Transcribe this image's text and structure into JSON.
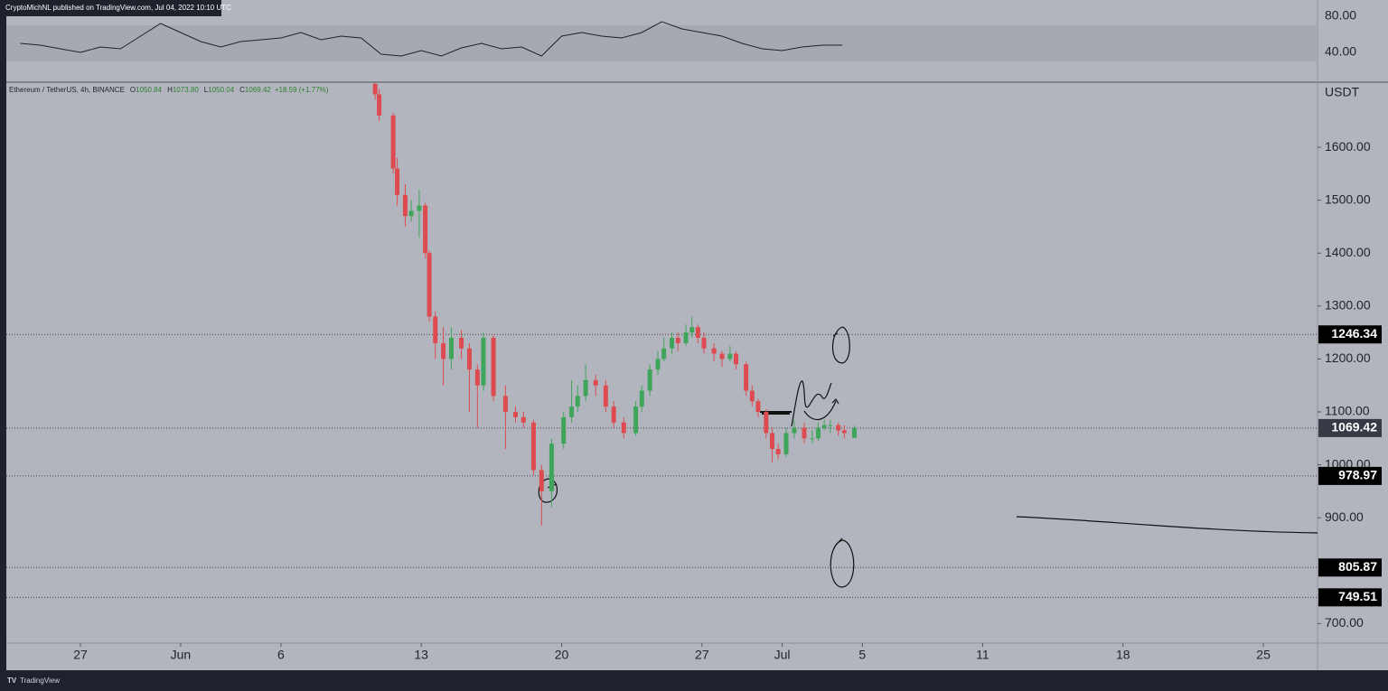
{
  "header": {
    "publisher": "CryptoMichNL published on TradingView.com, Jul 04, 2022 10:10 UTC",
    "footer": "TradingView"
  },
  "chart_data": {
    "type": "candlestick",
    "symbol": "Ethereum / TetherUS, 4h, BINANCE",
    "legend": [
      {
        "label": "O",
        "value": 1050.84
      },
      {
        "label": "H",
        "value": 1073.8,
        "print": "1073.80"
      },
      {
        "label": "L",
        "value": 1050.04
      },
      {
        "label": "C",
        "value": 1069.42
      }
    ],
    "change": "+18.59 (+1.77%)",
    "currency": "USDT",
    "up_color": "#3fa55b",
    "down_color": "#dd4b50",
    "x": [
      9.7,
      9.9,
      10.6,
      10.8,
      11.2,
      11.5,
      11.9,
      12.2,
      12.4,
      12.7,
      13.1,
      13.5,
      14.0,
      14.4,
      14.8,
      15.1,
      15.6,
      16.2,
      16.7,
      17.1,
      17.6,
      18.0,
      18.5,
      19.1,
      19.5,
      19.8,
      20.2,
      20.7,
      21.2,
      21.6,
      22.1,
      22.7,
      23.0,
      23.4,
      23.8,
      24.1,
      24.5,
      24.8,
      25.2,
      25.5,
      25.8,
      26.1,
      26.6,
      27.0,
      27.4,
      27.7,
      28.2,
      28.5,
      28.8,
      29.2,
      29.5,
      29.8,
      30.2,
      30.6,
      31.1,
      31.5,
      31.8,
      32.1,
      32.4,
      32.8,
      33.1,
      33.6
    ],
    "open": [
      1720,
      1700,
      1660,
      1560,
      1510,
      1470,
      1480,
      1490,
      1400,
      1280,
      1230,
      1200,
      1240,
      1220,
      1180,
      1150,
      1240,
      1130,
      1100,
      1090,
      1080,
      990,
      950,
      1040,
      1090,
      1110,
      1130,
      1160,
      1150,
      1110,
      1080,
      1060,
      1110,
      1140,
      1180,
      1200,
      1220,
      1240,
      1230,
      1250,
      1260,
      1240,
      1220,
      1210,
      1200,
      1210,
      1190,
      1140,
      1120,
      1100,
      1060,
      1030,
      1020,
      1060,
      1070,
      1050,
      1050,
      1070,
      1075,
      1075,
      1065,
      1050.84
    ],
    "high": [
      1735,
      1710,
      1665,
      1580,
      1530,
      1500,
      1520,
      1495,
      1405,
      1290,
      1260,
      1260,
      1255,
      1230,
      1190,
      1250,
      1245,
      1150,
      1110,
      1100,
      1085,
      1000,
      1050,
      1100,
      1160,
      1150,
      1190,
      1170,
      1160,
      1120,
      1090,
      1120,
      1150,
      1190,
      1215,
      1240,
      1250,
      1250,
      1265,
      1280,
      1265,
      1250,
      1230,
      1215,
      1225,
      1215,
      1195,
      1150,
      1125,
      1105,
      1070,
      1040,
      1070,
      1085,
      1080,
      1065,
      1080,
      1085,
      1085,
      1080,
      1075,
      1073.8
    ],
    "low": [
      1690,
      1650,
      1550,
      1490,
      1450,
      1460,
      1430,
      1390,
      1270,
      1200,
      1150,
      1180,
      1200,
      1100,
      1070,
      1140,
      1120,
      1030,
      1080,
      1070,
      980,
      885,
      920,
      1030,
      1080,
      1100,
      1120,
      1130,
      1100,
      1070,
      1050,
      1055,
      1100,
      1130,
      1170,
      1195,
      1210,
      1215,
      1225,
      1240,
      1230,
      1210,
      1195,
      1185,
      1195,
      1180,
      1130,
      1110,
      1090,
      1050,
      1005,
      1010,
      1015,
      1050,
      1040,
      1040,
      1045,
      1065,
      1060,
      1055,
      1050,
      1050.04
    ],
    "close": [
      1700,
      1660,
      1560,
      1510,
      1470,
      1480,
      1490,
      1400,
      1280,
      1230,
      1200,
      1240,
      1220,
      1180,
      1150,
      1240,
      1130,
      1100,
      1090,
      1080,
      990,
      950,
      1040,
      1090,
      1110,
      1130,
      1160,
      1150,
      1110,
      1080,
      1060,
      1110,
      1140,
      1180,
      1200,
      1220,
      1240,
      1230,
      1250,
      1260,
      1240,
      1220,
      1210,
      1200,
      1210,
      1190,
      1140,
      1120,
      1100,
      1060,
      1030,
      1020,
      1060,
      1070,
      1050,
      1050,
      1070,
      1075,
      1075,
      1065,
      1060,
      1069.42
    ],
    "levels": [
      1246.34,
      978.97,
      805.87,
      749.51
    ],
    "xlim": [
      -8.65,
      56.7
    ],
    "xticks": [
      {
        "value": -5,
        "label": "27"
      },
      {
        "value": 0,
        "label": "Jun"
      },
      {
        "value": 5,
        "label": "6"
      },
      {
        "value": 12,
        "label": "13"
      },
      {
        "value": 19,
        "label": "20"
      },
      {
        "value": 26,
        "label": "27"
      },
      {
        "value": 30,
        "label": "Jul"
      },
      {
        "value": 34,
        "label": "5"
      },
      {
        "value": 40,
        "label": "11"
      },
      {
        "value": 47,
        "label": "18"
      },
      {
        "value": 54,
        "label": "25"
      }
    ],
    "ylim": [
      663,
      1723
    ],
    "yticks": [
      {
        "value": 700,
        "label": "700.00"
      },
      {
        "value": 900,
        "label": "900.00"
      },
      {
        "value": 1000,
        "label": "1000.00"
      },
      {
        "value": 1100,
        "label": "1100.00"
      },
      {
        "value": 1200,
        "label": "1200.00"
      },
      {
        "value": 1300,
        "label": "1300.00"
      },
      {
        "value": 1400,
        "label": "1400.00"
      },
      {
        "value": 1500,
        "label": "1500.00"
      },
      {
        "value": 1600,
        "label": "1600.00"
      }
    ],
    "rsi": {
      "color": "#222222",
      "ylim": [
        8,
        98
      ],
      "band": [
        30,
        70
      ],
      "yticks": [
        {
          "value": 80,
          "label": "80.00"
        },
        {
          "value": 40,
          "label": "40.00"
        }
      ],
      "x": [
        -8,
        -7,
        -6,
        -5,
        -4,
        -3,
        -2,
        -1,
        0,
        1,
        2,
        3,
        4,
        5,
        6,
        7,
        8,
        9,
        10,
        11,
        12,
        13,
        14,
        15,
        16,
        17,
        18,
        19,
        20,
        21,
        22,
        23,
        24,
        25,
        26,
        27,
        28,
        29,
        30,
        31,
        32,
        33
      ],
      "values": [
        50,
        48,
        44,
        40,
        46,
        44,
        58,
        72,
        62,
        52,
        46,
        52,
        54,
        56,
        62,
        54,
        58,
        56,
        38,
        36,
        42,
        36,
        45,
        50,
        44,
        46,
        36,
        58,
        62,
        58,
        56,
        62,
        74,
        66,
        62,
        58,
        50,
        44,
        42,
        46,
        48,
        48
      ]
    }
  }
}
